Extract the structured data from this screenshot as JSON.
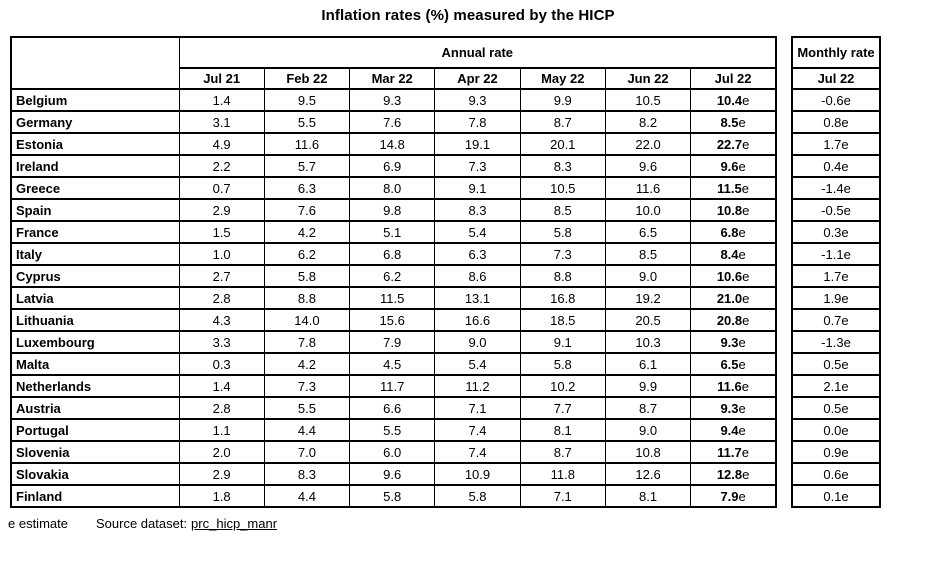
{
  "title": "Inflation rates (%) measured by the HICP",
  "footer": {
    "estimate_note": "e estimate",
    "source_label": "Source dataset:",
    "source_link": "prc_hicp_manr"
  },
  "chart_data": {
    "type": "table",
    "title": "Inflation rates (%) measured by the HICP",
    "unit": "%",
    "column_groups": [
      "Annual rate",
      "Monthly rate"
    ],
    "annual_columns": [
      "Jul 21",
      "Feb 22",
      "Mar 22",
      "Apr 22",
      "May 22",
      "Jun 22",
      "Jul 22"
    ],
    "monthly_column": "Jul 22",
    "estimate_flag": "e",
    "estimated_columns": [
      "Annual rate Jul 22",
      "Monthly rate Jul 22"
    ],
    "rows": [
      {
        "country": "Belgium",
        "annual": [
          1.4,
          9.5,
          9.3,
          9.3,
          9.9,
          10.5,
          10.4
        ],
        "monthly": -0.6
      },
      {
        "country": "Germany",
        "annual": [
          3.1,
          5.5,
          7.6,
          7.8,
          8.7,
          8.2,
          8.5
        ],
        "monthly": 0.8
      },
      {
        "country": "Estonia",
        "annual": [
          4.9,
          11.6,
          14.8,
          19.1,
          20.1,
          22.0,
          22.7
        ],
        "monthly": 1.7
      },
      {
        "country": "Ireland",
        "annual": [
          2.2,
          5.7,
          6.9,
          7.3,
          8.3,
          9.6,
          9.6
        ],
        "monthly": 0.4
      },
      {
        "country": "Greece",
        "annual": [
          0.7,
          6.3,
          8.0,
          9.1,
          10.5,
          11.6,
          11.5
        ],
        "monthly": -1.4
      },
      {
        "country": "Spain",
        "annual": [
          2.9,
          7.6,
          9.8,
          8.3,
          8.5,
          10.0,
          10.8
        ],
        "monthly": -0.5
      },
      {
        "country": "France",
        "annual": [
          1.5,
          4.2,
          5.1,
          5.4,
          5.8,
          6.5,
          6.8
        ],
        "monthly": 0.3
      },
      {
        "country": "Italy",
        "annual": [
          1.0,
          6.2,
          6.8,
          6.3,
          7.3,
          8.5,
          8.4
        ],
        "monthly": -1.1
      },
      {
        "country": "Cyprus",
        "annual": [
          2.7,
          5.8,
          6.2,
          8.6,
          8.8,
          9.0,
          10.6
        ],
        "monthly": 1.7
      },
      {
        "country": "Latvia",
        "annual": [
          2.8,
          8.8,
          11.5,
          13.1,
          16.8,
          19.2,
          21.0
        ],
        "monthly": 1.9
      },
      {
        "country": "Lithuania",
        "annual": [
          4.3,
          14.0,
          15.6,
          16.6,
          18.5,
          20.5,
          20.8
        ],
        "monthly": 0.7
      },
      {
        "country": "Luxembourg",
        "annual": [
          3.3,
          7.8,
          7.9,
          9.0,
          9.1,
          10.3,
          9.3
        ],
        "monthly": -1.3
      },
      {
        "country": "Malta",
        "annual": [
          0.3,
          4.2,
          4.5,
          5.4,
          5.8,
          6.1,
          6.5
        ],
        "monthly": 0.5
      },
      {
        "country": "Netherlands",
        "annual": [
          1.4,
          7.3,
          11.7,
          11.2,
          10.2,
          9.9,
          11.6
        ],
        "monthly": 2.1
      },
      {
        "country": "Austria",
        "annual": [
          2.8,
          5.5,
          6.6,
          7.1,
          7.7,
          8.7,
          9.3
        ],
        "monthly": 0.5
      },
      {
        "country": "Portugal",
        "annual": [
          1.1,
          4.4,
          5.5,
          7.4,
          8.1,
          9.0,
          9.4
        ],
        "monthly": 0.0
      },
      {
        "country": "Slovenia",
        "annual": [
          2.0,
          7.0,
          6.0,
          7.4,
          8.7,
          10.8,
          11.7
        ],
        "monthly": 0.9
      },
      {
        "country": "Slovakia",
        "annual": [
          2.9,
          8.3,
          9.6,
          10.9,
          11.8,
          12.6,
          12.8
        ],
        "monthly": 0.6
      },
      {
        "country": "Finland",
        "annual": [
          1.8,
          4.4,
          5.8,
          5.8,
          7.1,
          8.1,
          7.9
        ],
        "monthly": 0.1
      }
    ]
  }
}
